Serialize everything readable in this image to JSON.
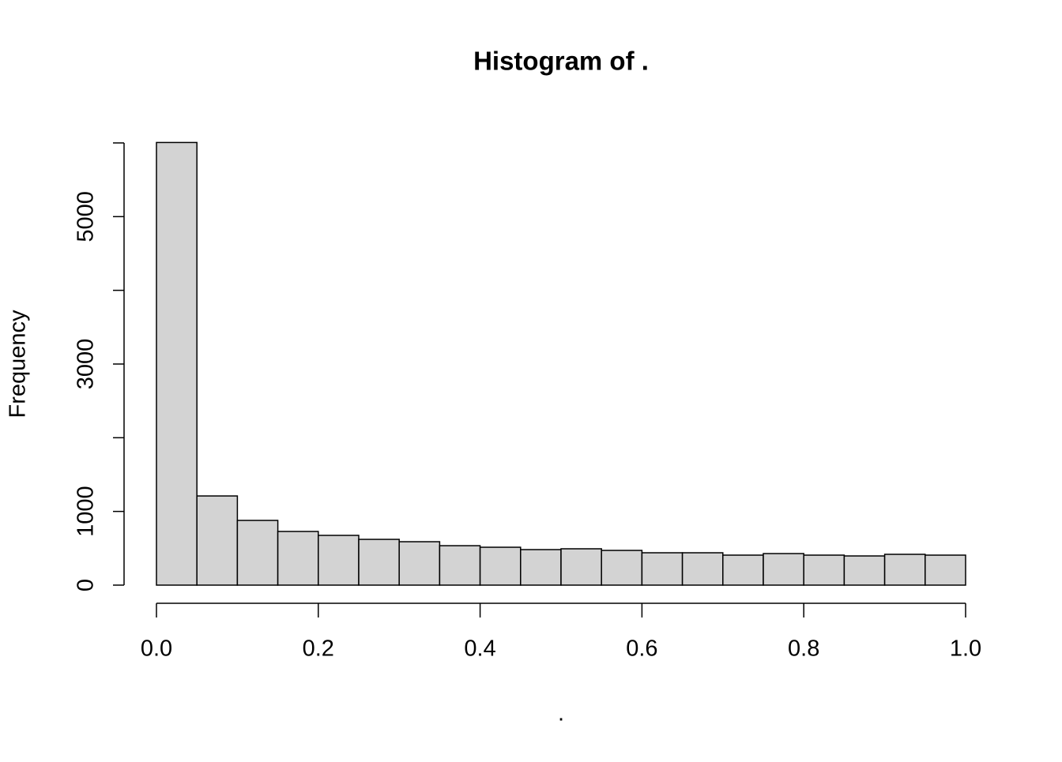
{
  "chart_data": {
    "type": "histogram",
    "title": "Histogram of .",
    "x_label": ".",
    "y_label": "Frequency",
    "bins": [
      0,
      0.05,
      0.1,
      0.15,
      0.2,
      0.25,
      0.3,
      0.35,
      0.4,
      0.45,
      0.5,
      0.55,
      0.6,
      0.65,
      0.7,
      0.75,
      0.8,
      0.85,
      0.9,
      0.95,
      1
    ],
    "values": [
      6006,
      1210,
      878,
      728,
      675,
      621,
      589,
      535,
      514,
      482,
      493,
      471,
      439,
      439,
      407,
      428,
      407,
      396,
      418,
      407
    ],
    "color": "#d3d3d3",
    "xlim": [
      0,
      1
    ],
    "xticks": [
      {
        "value": 0,
        "label": "0.0"
      },
      0.2,
      0.4,
      0.6,
      0.8,
      {
        "value": 1,
        "label": "1.0"
      }
    ],
    "ylim": [
      0,
      6000
    ],
    "yticks": [
      0,
      1000,
      {
        "value": 2000,
        "label": null
      },
      3000,
      {
        "value": 4000,
        "label": null
      },
      5000,
      {
        "value": 6000,
        "label": null
      }
    ]
  }
}
